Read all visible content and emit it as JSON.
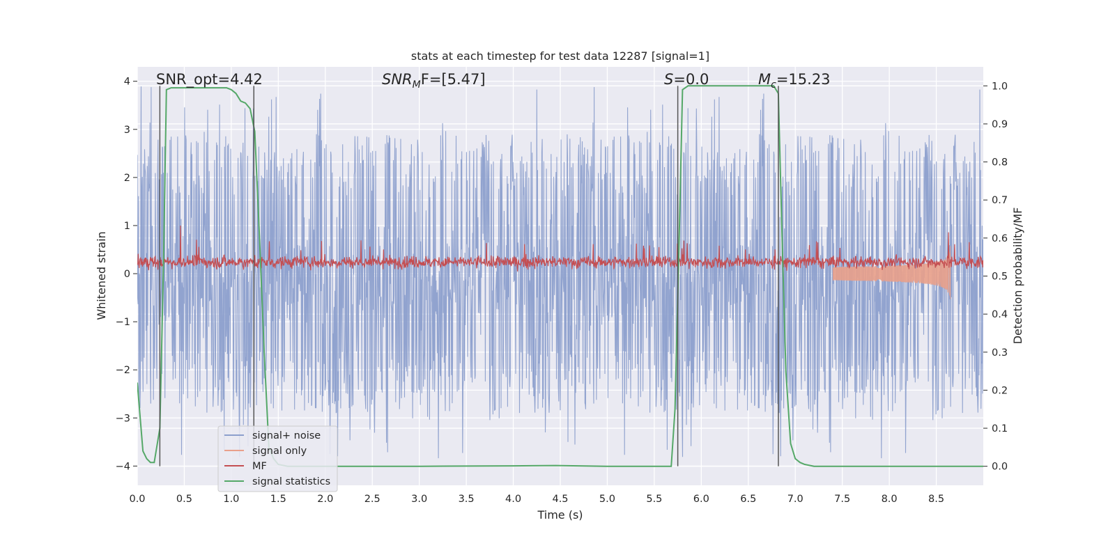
{
  "chart_data": {
    "type": "line",
    "title": "stats at each timestep for test data 12287 [signal=1]",
    "xlabel": "Time (s)",
    "ylabel": "Whitened strain",
    "y2label": "Detection probability/MF",
    "xlim": [
      0,
      9.0
    ],
    "ylim": [
      -4.4,
      4.3
    ],
    "y2lim": [
      -0.05,
      1.05
    ],
    "xticks": [
      "0.0",
      "0.5",
      "1.0",
      "1.5",
      "2.0",
      "2.5",
      "3.0",
      "3.5",
      "4.0",
      "4.5",
      "5.0",
      "5.5",
      "6.0",
      "6.5",
      "7.0",
      "7.5",
      "8.0",
      "8.5"
    ],
    "yticks": [
      "−4",
      "−3",
      "−2",
      "−1",
      "0",
      "1",
      "2",
      "3",
      "4"
    ],
    "y2ticks": [
      "0.0",
      "0.1",
      "0.2",
      "0.3",
      "0.4",
      "0.5",
      "0.6",
      "0.7",
      "0.8",
      "0.9",
      "1.0"
    ],
    "grid": true,
    "legend_position": "lower-left",
    "annotations": [
      {
        "id": "snr-opt",
        "text": "SNR_opt=4.42"
      },
      {
        "id": "snr-mf",
        "text": "SNR",
        "sub": "M",
        "rest": "F=[5.47]"
      },
      {
        "id": "s-value",
        "text": "S",
        "rest": "=0.0"
      },
      {
        "id": "mc-value",
        "text": "M",
        "sub": "c",
        "rest": "=15.23"
      }
    ],
    "vertical_lines_x": [
      0.24,
      1.24,
      5.75,
      6.82
    ],
    "series": [
      {
        "name": "signal+ noise",
        "color": "#8c9fcc",
        "kind": "noise",
        "amplitude_range": [
          -4.0,
          4.1
        ]
      },
      {
        "name": "signal only",
        "color": "#e9a08a",
        "kind": "chirp",
        "end_x": 8.65,
        "max_amplitude": 0.9
      },
      {
        "name": "MF",
        "color": "#c44e52",
        "kind": "mf",
        "typical_range": [
          0.0,
          0.6
        ]
      },
      {
        "name": "signal statistics",
        "color": "#55a868",
        "x": [
          0.0,
          0.06,
          0.1,
          0.14,
          0.18,
          0.24,
          0.28,
          0.31,
          0.36,
          0.5,
          0.7,
          0.95,
          1.0,
          1.05,
          1.1,
          1.15,
          1.2,
          1.25,
          1.3,
          1.35,
          1.4,
          1.45,
          1.5,
          1.6,
          2.0,
          3.0,
          4.0,
          4.45,
          5.0,
          5.5,
          5.68,
          5.72,
          5.76,
          5.8,
          5.86,
          6.0,
          6.5,
          6.77,
          6.82,
          6.86,
          6.9,
          6.95,
          7.0,
          7.05,
          7.1,
          7.2,
          7.3,
          8.0,
          9.0
        ],
        "y": [
          0.22,
          0.04,
          0.02,
          0.01,
          0.01,
          0.1,
          0.55,
          0.99,
          0.995,
          0.995,
          0.995,
          0.995,
          0.99,
          0.98,
          0.96,
          0.955,
          0.94,
          0.88,
          0.6,
          0.3,
          0.05,
          0.02,
          0.005,
          0.0,
          0.0,
          0.0,
          0.001,
          0.002,
          0.0,
          0.0,
          0.0,
          0.15,
          0.55,
          0.99,
          1.0,
          1.0,
          1.0,
          1.0,
          0.98,
          0.6,
          0.25,
          0.06,
          0.02,
          0.01,
          0.005,
          0.0,
          0.0,
          0.0,
          0.0
        ]
      }
    ]
  }
}
